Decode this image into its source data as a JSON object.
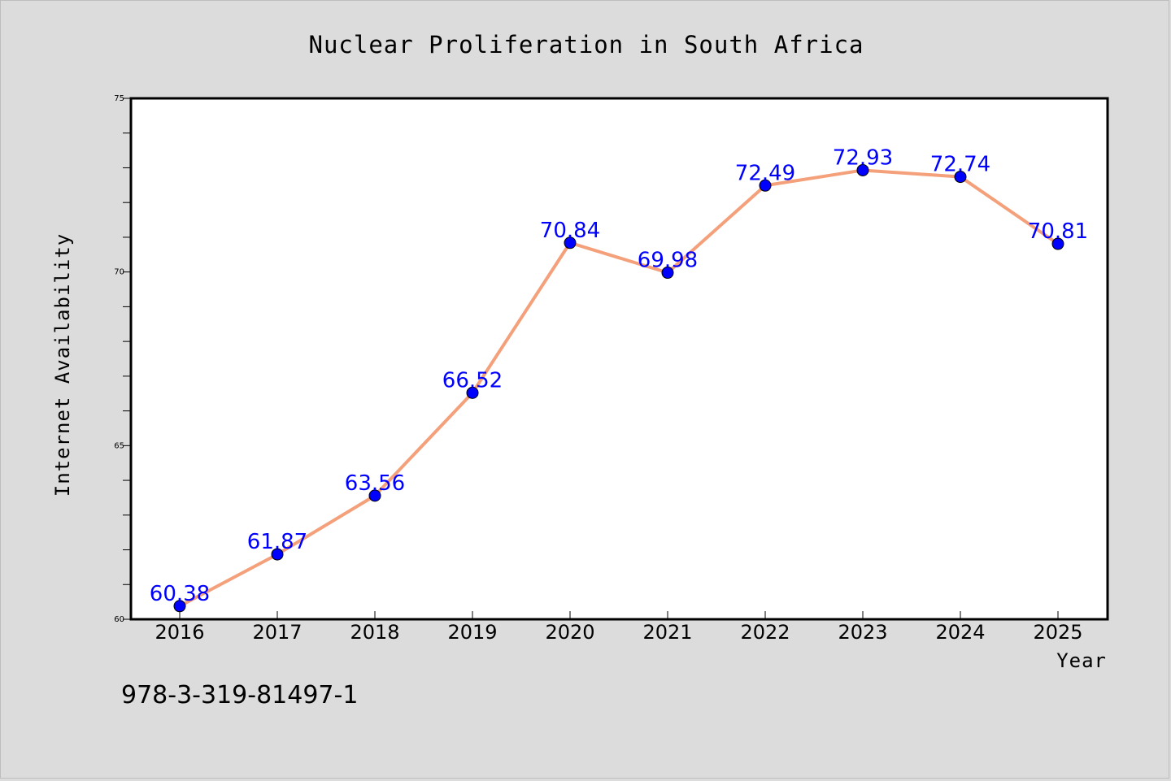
{
  "chart_data": {
    "type": "line",
    "title": "Nuclear Proliferation in South Africa",
    "xlabel": "Year",
    "ylabel": "Internet Availability",
    "categories": [
      "2016",
      "2017",
      "2018",
      "2019",
      "2020",
      "2021",
      "2022",
      "2023",
      "2024",
      "2025"
    ],
    "series": [
      {
        "values": [
          60.38,
          61.87,
          63.56,
          66.52,
          70.84,
          69.98,
          72.49,
          72.93,
          72.74,
          70.81
        ],
        "labels": [
          "60.38",
          "61.87",
          "63.56",
          "66.52",
          "70.84",
          "69.98",
          "72.49",
          "72.93",
          "72.74",
          "70.81"
        ],
        "line_color": "#f4a07a",
        "marker_color": "#0000ff"
      }
    ],
    "ylim": [
      60,
      75
    ],
    "yticks": [
      "60",
      "65",
      "70",
      "75"
    ],
    "grid": false,
    "legend": "none"
  },
  "footer": {
    "isbn": "978-3-319-81497-1"
  }
}
